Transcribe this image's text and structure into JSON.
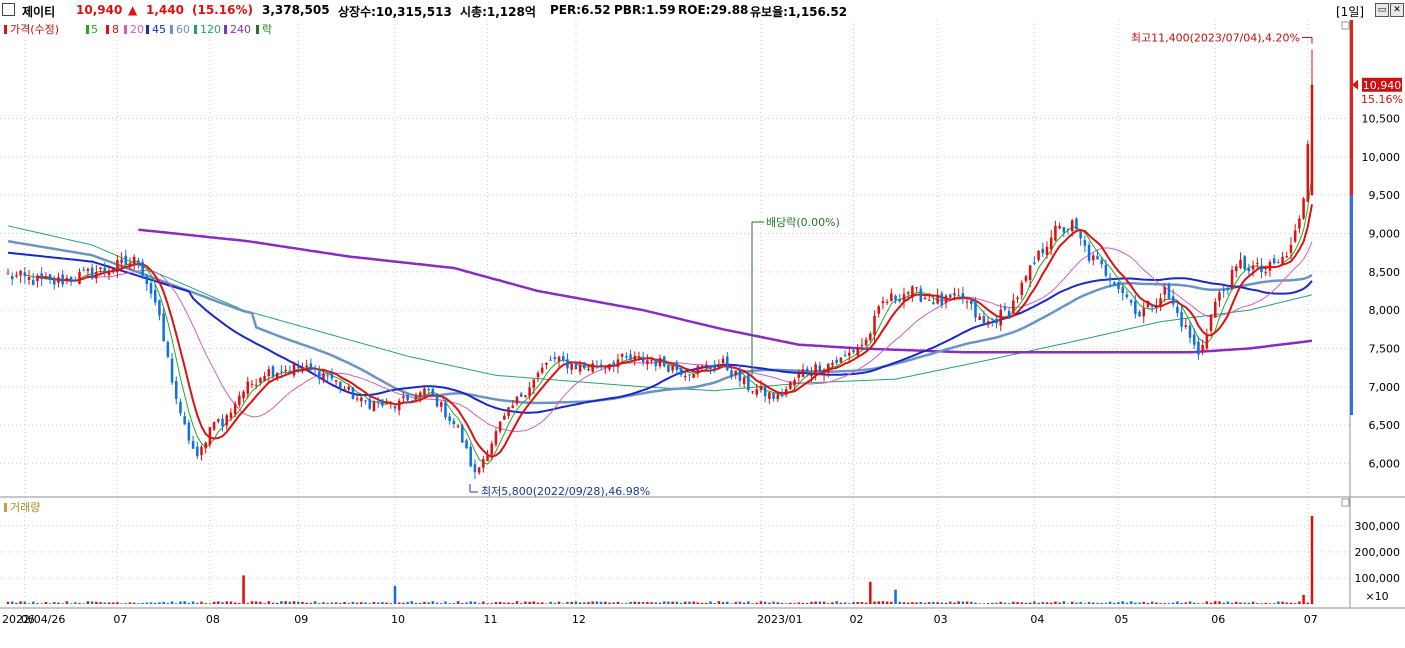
{
  "header": {
    "name": "제이티",
    "price": "10,940",
    "arrow": "▲",
    "change": "1,440",
    "pct": "(15.16%)",
    "volume": "3,378,505",
    "shares": "상장수:10,315,513",
    "mktcap": "시총:1,128억",
    "per": "PER:6.52",
    "pbr": "PBR:1.59",
    "roe": "ROE:29.88",
    "float": "유보율:1,156.52",
    "period": "[1일]"
  },
  "legend": {
    "price_label": "가격(수정)",
    "ma": [
      "5",
      "8",
      "20",
      "45",
      "60",
      "120",
      "240"
    ],
    "extra": "락"
  },
  "volume_legend": "거래량",
  "colors": {
    "up": "#e01010",
    "down": "#1070e0",
    "ma5": "#22aa22",
    "ma8": "#dd1111",
    "ma20": "#d060c0",
    "ma45": "#1a28c8",
    "ma60": "#6a94c4",
    "ma120": "#2aa070",
    "ma240": "#8a2cc0",
    "grid": "#c8ccd4"
  },
  "annotations": {
    "high": "최고11,400(2023/07/04),4.20%",
    "low": "최저5,800(2022/09/28),46.98%",
    "dividend": "배당락(0.00%)",
    "last_price": "10,940",
    "last_pct": "15.16%"
  },
  "chart_data": [
    {
      "type": "candlestick",
      "title": "가격(수정)",
      "ylim": [
        5600,
        11600
      ],
      "y_ticks": [
        10500,
        10000,
        9500,
        9000,
        8500,
        8000,
        7500,
        7000,
        6500,
        6000
      ],
      "y_tick_labels": [
        "10,500",
        "10,000",
        "9,500",
        "9,000",
        "8,500",
        "8,000",
        "7,500",
        "7,000",
        "6,500",
        "6,000"
      ],
      "x_tick_labels": [
        "2022/04/26",
        "06",
        "07",
        "08",
        "09",
        "10",
        "11",
        "12",
        "2023/01",
        "02",
        "03",
        "04",
        "05",
        "06",
        "07"
      ],
      "close_anchors": [
        [
          "2022/04/26",
          8450
        ],
        [
          "2022/05/10",
          8350
        ],
        [
          "2022/05/25",
          8500
        ],
        [
          "2022/06/08",
          8650
        ],
        [
          "2022/06/14",
          8100
        ],
        [
          "2022/06/22",
          6600
        ],
        [
          "2022/06/28",
          6050
        ],
        [
          "2022/07/04",
          6600
        ],
        [
          "2022/07/06",
          6500
        ],
        [
          "2022/07/12",
          6900
        ],
        [
          "2022/07/20",
          7200
        ],
        [
          "2022/08/01",
          7250
        ],
        [
          "2022/08/10",
          7150
        ],
        [
          "2022/08/22",
          6800
        ],
        [
          "2022/09/01",
          6750
        ],
        [
          "2022/09/13",
          6950
        ],
        [
          "2022/09/22",
          6450
        ],
        [
          "2022/09/28",
          5850
        ],
        [
          "2022/10/06",
          6500
        ],
        [
          "2022/10/13",
          6900
        ],
        [
          "2022/10/24",
          7350
        ],
        [
          "2022/11/03",
          7250
        ],
        [
          "2022/11/15",
          7350
        ],
        [
          "2022/11/25",
          7350
        ],
        [
          "2022/12/07",
          7200
        ],
        [
          "2022/12/20",
          7300
        ],
        [
          "2022/12/28",
          7000
        ],
        [
          "2023/01/06",
          6850
        ],
        [
          "2023/01/16",
          7200
        ],
        [
          "2023/01/27",
          7350
        ],
        [
          "2023/02/06",
          7600
        ],
        [
          "2023/02/10",
          8100
        ],
        [
          "2023/02/20",
          8250
        ],
        [
          "2023/03/02",
          8100
        ],
        [
          "2023/03/09",
          8150
        ],
        [
          "2023/03/16",
          7800
        ],
        [
          "2023/03/24",
          8000
        ],
        [
          "2023/04/04",
          8700
        ],
        [
          "2023/04/07",
          9000
        ],
        [
          "2023/04/14",
          9100
        ],
        [
          "2023/04/20",
          8700
        ],
        [
          "2023/04/28",
          8400
        ],
        [
          "2023/05/08",
          7950
        ],
        [
          "2023/05/16",
          8250
        ],
        [
          "2023/05/24",
          7650
        ],
        [
          "2023/05/26",
          7400
        ],
        [
          "2023/06/01",
          8100
        ],
        [
          "2023/06/09",
          8600
        ],
        [
          "2023/06/19",
          8500
        ],
        [
          "2023/06/26",
          8700
        ],
        [
          "2023/06/29",
          9150
        ],
        [
          "2023/06/30",
          9500
        ],
        [
          "2023/07/04",
          10940
        ]
      ],
      "high": {
        "date": "2023/07/04",
        "value": 11400
      },
      "low": {
        "date": "2022/09/28",
        "value": 5800
      },
      "last": 10940,
      "ma_periods": [
        5,
        8,
        20,
        45,
        60,
        120,
        240
      ],
      "ma240_anchors": [
        [
          "2022/06/08",
          9050
        ],
        [
          "2022/07/14",
          8900
        ],
        [
          "2022/08/17",
          8700
        ],
        [
          "2022/09/21",
          8550
        ],
        [
          "2022/10/19",
          8250
        ],
        [
          "2022/11/23",
          8000
        ],
        [
          "2022/12/20",
          7750
        ],
        [
          "2023/01/13",
          7550
        ],
        [
          "2023/02/03",
          7500
        ],
        [
          "2023/03/10",
          7450
        ],
        [
          "2023/04/10",
          7450
        ],
        [
          "2023/05/24",
          7450
        ],
        [
          "2023/06/13",
          7500
        ],
        [
          "2023/07/04",
          7600
        ]
      ],
      "ma120_anchors": [
        [
          "2022/04/26",
          9100
        ],
        [
          "2022/05/24",
          8850
        ],
        [
          "2022/07/13",
          8000
        ],
        [
          "2022/09/06",
          7400
        ],
        [
          "2022/10/05",
          7150
        ],
        [
          "2022/11/23",
          7000
        ],
        [
          "2022/12/16",
          6950
        ],
        [
          "2023/01/16",
          7050
        ],
        [
          "2023/02/15",
          7100
        ],
        [
          "2023/03/17",
          7350
        ],
        [
          "2023/04/17",
          7600
        ],
        [
          "2023/05/15",
          7850
        ],
        [
          "2023/06/13",
          8000
        ],
        [
          "2023/07/04",
          8200
        ]
      ]
    },
    {
      "type": "bar",
      "title": "거래량",
      "y_ticks": [
        300000,
        200000,
        100000
      ],
      "y_tick_labels": [
        "300,000",
        "200,000",
        "100,000"
      ],
      "unit_label": "×10",
      "values_note": "daily volume (×10)",
      "spikes": [
        [
          "2022/07/13",
          110000
        ],
        [
          "2022/09/01",
          70000
        ],
        [
          "2023/02/07",
          85000
        ],
        [
          "2023/02/15",
          55000
        ],
        [
          "2023/06/30",
          35000
        ],
        [
          "2023/07/04",
          337850
        ]
      ]
    }
  ]
}
